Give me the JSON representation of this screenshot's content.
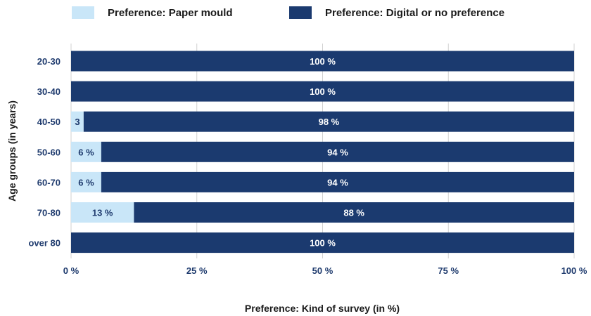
{
  "chart_data": {
    "type": "bar",
    "orientation": "horizontal",
    "stacked": true,
    "categories": [
      "20-30",
      "30-40",
      "40-50",
      "50-60",
      "60-70",
      "70-80",
      "over 80"
    ],
    "series": [
      {
        "name": "Preference: Paper mould",
        "color": "#c9e6f8",
        "values": [
          0,
          0,
          2.5,
          6,
          6,
          12.5,
          0
        ],
        "labels": [
          "",
          "",
          "3",
          "6 %",
          "6 %",
          "13 %",
          ""
        ]
      },
      {
        "name": "Preference: Digital or no preference",
        "color": "#1b3a6f",
        "values": [
          100,
          100,
          97.5,
          94,
          94,
          87.5,
          100
        ],
        "labels": [
          "100 %",
          "100 %",
          "98 %",
          "94 %",
          "94 %",
          "88 %",
          "100 %"
        ]
      }
    ],
    "xlim": [
      0,
      100
    ],
    "xticks": [
      0,
      25,
      50,
      75,
      100
    ],
    "xtick_labels": [
      "0 %",
      "25 %",
      "50 %",
      "75 %",
      "100 %"
    ],
    "xlabel": "Preference: Kind of survey (in %)",
    "ylabel": "Age groups (in years)",
    "grid": true,
    "legend_position": "top"
  }
}
